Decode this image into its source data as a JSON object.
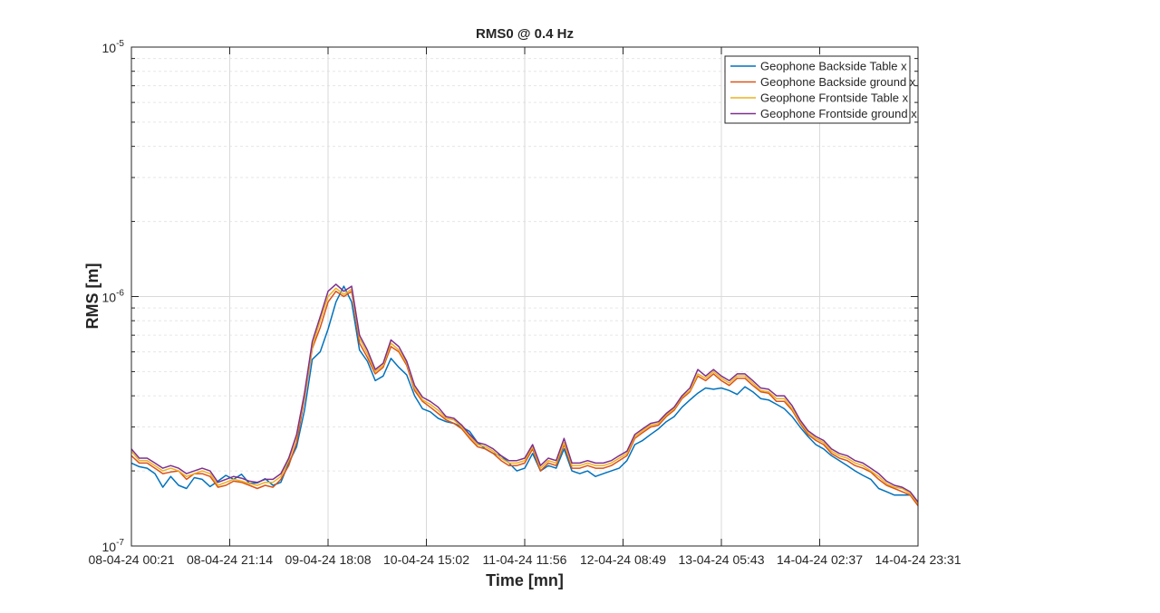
{
  "chart_data": {
    "type": "line",
    "title": "RMS0 @ 0.4 Hz",
    "xlabel": "Time [mn]",
    "ylabel": "RMS [m]",
    "yscale": "log",
    "ylim": [
      1e-07,
      1e-05
    ],
    "y_ticks": [
      {
        "base": "10",
        "exp": "-7"
      },
      {
        "base": "10",
        "exp": "-6"
      },
      {
        "base": "10",
        "exp": "-5"
      }
    ],
    "x_tick_labels": [
      "08-04-24 00:21",
      "08-04-24 21:14",
      "09-04-24 18:08",
      "10-04-24 15:02",
      "11-04-24 11:56",
      "12-04-24 08:49",
      "13-04-24 05:43",
      "14-04-24 02:37",
      "14-04-24 23:31"
    ],
    "grid": true,
    "legend_position": "top-right",
    "colors": [
      "#0072BD",
      "#D95319",
      "#EDB120",
      "#7E2F8E"
    ],
    "series": [
      {
        "name": "Geophone Backside Table x",
        "values": [
          2.15e-07,
          2.08e-07,
          2.05e-07,
          1.95e-07,
          1.72e-07,
          1.9e-07,
          1.75e-07,
          1.7e-07,
          1.88e-07,
          1.85e-07,
          1.73e-07,
          1.82e-07,
          1.92e-07,
          1.85e-07,
          1.94e-07,
          1.78e-07,
          1.79e-07,
          1.86e-07,
          1.75e-07,
          1.8e-07,
          2.15e-07,
          2.5e-07,
          3.5e-07,
          5.6e-07,
          6e-07,
          7.4e-07,
          9.5e-07,
          1.1e-06,
          9.5e-07,
          6.1e-07,
          5.5e-07,
          4.6e-07,
          4.8e-07,
          5.65e-07,
          5.2e-07,
          4.85e-07,
          4e-07,
          3.55e-07,
          3.45e-07,
          3.25e-07,
          3.15e-07,
          3.1e-07,
          3e-07,
          2.88e-07,
          2.6e-07,
          2.45e-07,
          2.35e-07,
          2.3e-07,
          2.15e-07,
          2e-07,
          2.05e-07,
          2.35e-07,
          2e-07,
          2.1e-07,
          2.05e-07,
          2.45e-07,
          2e-07,
          1.95e-07,
          2e-07,
          1.9e-07,
          1.95e-07,
          2e-07,
          2.05e-07,
          2.2e-07,
          2.55e-07,
          2.65e-07,
          2.8e-07,
          2.95e-07,
          3.15e-07,
          3.3e-07,
          3.6e-07,
          3.85e-07,
          4.1e-07,
          4.3e-07,
          4.25e-07,
          4.3e-07,
          4.2e-07,
          4.05e-07,
          4.35e-07,
          4.15e-07,
          3.9e-07,
          3.85e-07,
          3.7e-07,
          3.55e-07,
          3.3e-07,
          3e-07,
          2.75e-07,
          2.55e-07,
          2.45e-07,
          2.3e-07,
          2.2e-07,
          2.1e-07,
          2e-07,
          1.92e-07,
          1.85e-07,
          1.7e-07,
          1.65e-07,
          1.6e-07,
          1.6e-07,
          1.6e-07,
          1.5e-07
        ]
      },
      {
        "name": "Geophone Backside ground x",
        "values": [
          2.3e-07,
          2.15e-07,
          2.15e-07,
          2.05e-07,
          1.95e-07,
          1.98e-07,
          2e-07,
          1.85e-07,
          1.95e-07,
          1.95e-07,
          1.9e-07,
          1.72e-07,
          1.75e-07,
          1.82e-07,
          1.8e-07,
          1.75e-07,
          1.7e-07,
          1.75e-07,
          1.72e-07,
          1.85e-07,
          2.1e-07,
          2.6e-07,
          3.9e-07,
          6.2e-07,
          7.5e-07,
          9.5e-07,
          1.05e-06,
          1e-06,
          1.05e-06,
          6.5e-07,
          5.7e-07,
          4.9e-07,
          5.2e-07,
          6.3e-07,
          6e-07,
          5.3e-07,
          4.2e-07,
          3.8e-07,
          3.6e-07,
          3.4e-07,
          3.2e-07,
          3.1e-07,
          2.95e-07,
          2.7e-07,
          2.5e-07,
          2.45e-07,
          2.35e-07,
          2.2e-07,
          2.1e-07,
          2.1e-07,
          2.15e-07,
          2.45e-07,
          2e-07,
          2.15e-07,
          2.1e-07,
          2.55e-07,
          2.05e-07,
          2.05e-07,
          2.1e-07,
          2.05e-07,
          2.05e-07,
          2.1e-07,
          2.2e-07,
          2.3e-07,
          2.7e-07,
          2.85e-07,
          3e-07,
          3.05e-07,
          3.3e-07,
          3.5e-07,
          3.9e-07,
          4.15e-07,
          4.8e-07,
          4.6e-07,
          4.9e-07,
          4.6e-07,
          4.4e-07,
          4.7e-07,
          4.7e-07,
          4.4e-07,
          4.15e-07,
          4.1e-07,
          3.8e-07,
          3.8e-07,
          3.5e-07,
          3.1e-07,
          2.8e-07,
          2.65e-07,
          2.55e-07,
          2.35e-07,
          2.25e-07,
          2.2e-07,
          2.1e-07,
          2.05e-07,
          1.98e-07,
          1.85e-07,
          1.75e-07,
          1.7e-07,
          1.65e-07,
          1.6e-07,
          1.45e-07
        ]
      },
      {
        "name": "Geophone Frontside Table x",
        "values": [
          2.4e-07,
          2.2e-07,
          2.2e-07,
          2.1e-07,
          2e-07,
          2.05e-07,
          2e-07,
          1.9e-07,
          1.95e-07,
          2e-07,
          1.95e-07,
          1.75e-07,
          1.8e-07,
          1.85e-07,
          1.82e-07,
          1.78e-07,
          1.75e-07,
          1.8e-07,
          1.8e-07,
          1.9e-07,
          2.2e-07,
          2.75e-07,
          4e-07,
          6.3e-07,
          8e-07,
          1e-06,
          1.08e-06,
          1.02e-06,
          1.07e-06,
          6.8e-07,
          5.9e-07,
          5e-07,
          5.3e-07,
          6.5e-07,
          6.1e-07,
          5.4e-07,
          4.3e-07,
          3.85e-07,
          3.7e-07,
          3.5e-07,
          3.25e-07,
          3.2e-07,
          3e-07,
          2.75e-07,
          2.55e-07,
          2.5e-07,
          2.4e-07,
          2.25e-07,
          2.15e-07,
          2.15e-07,
          2.2e-07,
          2.5e-07,
          2.05e-07,
          2.2e-07,
          2.15e-07,
          2.6e-07,
          2.1e-07,
          2.1e-07,
          2.15e-07,
          2.1e-07,
          2.1e-07,
          2.15e-07,
          2.25e-07,
          2.35e-07,
          2.75e-07,
          2.9e-07,
          3.05e-07,
          3.1e-07,
          3.35e-07,
          3.55e-07,
          3.95e-07,
          4.2e-07,
          4.9e-07,
          4.7e-07,
          5e-07,
          4.7e-07,
          4.5e-07,
          4.8e-07,
          4.8e-07,
          4.5e-07,
          4.2e-07,
          4.15e-07,
          3.9e-07,
          3.9e-07,
          3.55e-07,
          3.15e-07,
          2.85e-07,
          2.7e-07,
          2.6e-07,
          2.4e-07,
          2.3e-07,
          2.25e-07,
          2.15e-07,
          2.1e-07,
          2e-07,
          1.9e-07,
          1.78e-07,
          1.72e-07,
          1.7e-07,
          1.62e-07,
          1.48e-07
        ]
      },
      {
        "name": "Geophone Frontside ground x",
        "values": [
          2.45e-07,
          2.25e-07,
          2.25e-07,
          2.15e-07,
          2.05e-07,
          2.1e-07,
          2.05e-07,
          1.95e-07,
          2e-07,
          2.05e-07,
          2e-07,
          1.8e-07,
          1.85e-07,
          1.9e-07,
          1.87e-07,
          1.82e-07,
          1.8e-07,
          1.85e-07,
          1.85e-07,
          1.95e-07,
          2.25e-07,
          2.8e-07,
          4.1e-07,
          6.6e-07,
          8.3e-07,
          1.05e-06,
          1.12e-06,
          1.05e-06,
          1.1e-06,
          7e-07,
          6.1e-07,
          5.1e-07,
          5.4e-07,
          6.7e-07,
          6.3e-07,
          5.5e-07,
          4.4e-07,
          3.95e-07,
          3.8e-07,
          3.6e-07,
          3.3e-07,
          3.25e-07,
          3.05e-07,
          2.8e-07,
          2.6e-07,
          2.55e-07,
          2.45e-07,
          2.3e-07,
          2.2e-07,
          2.2e-07,
          2.25e-07,
          2.55e-07,
          2.1e-07,
          2.25e-07,
          2.2e-07,
          2.7e-07,
          2.15e-07,
          2.15e-07,
          2.2e-07,
          2.15e-07,
          2.15e-07,
          2.2e-07,
          2.3e-07,
          2.4e-07,
          2.8e-07,
          2.95e-07,
          3.1e-07,
          3.15e-07,
          3.4e-07,
          3.6e-07,
          4e-07,
          4.3e-07,
          5.1e-07,
          4.8e-07,
          5.1e-07,
          4.8e-07,
          4.6e-07,
          4.9e-07,
          4.9e-07,
          4.6e-07,
          4.3e-07,
          4.25e-07,
          4e-07,
          4e-07,
          3.65e-07,
          3.2e-07,
          2.9e-07,
          2.75e-07,
          2.65e-07,
          2.45e-07,
          2.35e-07,
          2.3e-07,
          2.2e-07,
          2.15e-07,
          2.05e-07,
          1.95e-07,
          1.82e-07,
          1.75e-07,
          1.72e-07,
          1.65e-07,
          1.5e-07
        ]
      }
    ]
  }
}
